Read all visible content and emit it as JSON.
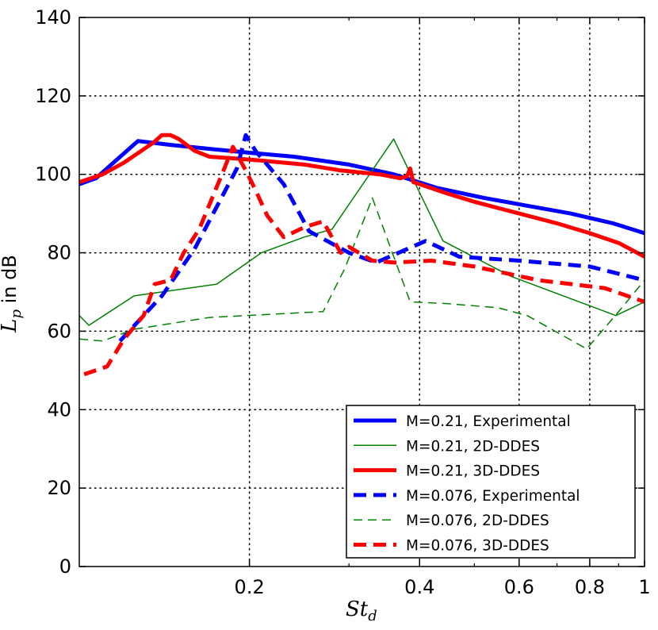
{
  "chart_data": {
    "type": "line",
    "title": "",
    "xlabel": "St_d",
    "xlabel_main": "St",
    "xlabel_sub": "d",
    "ylabel": "L_p in dB",
    "ylabel_main": "L",
    "ylabel_sub": "p",
    "ylabel_rest": " in dB",
    "xscale": "log",
    "xlim": [
      0.1,
      1.0
    ],
    "ylim": [
      0,
      140
    ],
    "xticks": [
      {
        "value": 0.2,
        "label": "0.2"
      },
      {
        "value": 0.4,
        "label": "0.4"
      },
      {
        "value": 0.6,
        "label": "0.6"
      },
      {
        "value": 0.8,
        "label": "0.8"
      },
      {
        "value": 1.0,
        "label": "1"
      }
    ],
    "yticks": [
      {
        "value": 0,
        "label": "0"
      },
      {
        "value": 20,
        "label": "20"
      },
      {
        "value": 40,
        "label": "40"
      },
      {
        "value": 60,
        "label": "60"
      },
      {
        "value": 80,
        "label": "80"
      },
      {
        "value": 100,
        "label": "100"
      },
      {
        "value": 120,
        "label": "120"
      },
      {
        "value": 140,
        "label": "140"
      }
    ],
    "grid": true,
    "legend_position": "bottom-right",
    "series": [
      {
        "name": "M=0.21, Experimental",
        "color": "#0000ff",
        "style": "solid",
        "weight": "thick",
        "x": [
          0.1,
          0.107,
          0.115,
          0.127,
          0.145,
          0.17,
          0.2,
          0.24,
          0.3,
          0.36,
          0.43,
          0.52,
          0.62,
          0.74,
          0.88,
          1.0
        ],
        "y": [
          97.5,
          99,
          103,
          108.5,
          107.5,
          106.5,
          105.5,
          104.5,
          102.5,
          100,
          96.5,
          94,
          92,
          90,
          87.5,
          85
        ]
      },
      {
        "name": "M=0.21, 2D-DDES",
        "color": "#008000",
        "style": "solid",
        "weight": "thin",
        "x": [
          0.1,
          0.104,
          0.125,
          0.175,
          0.21,
          0.25,
          0.28,
          0.36,
          0.44,
          0.58,
          0.89,
          1.0
        ],
        "y": [
          64,
          61.5,
          69,
          72,
          80,
          84,
          86,
          109,
          83,
          74,
          64,
          67.5
        ]
      },
      {
        "name": "M=0.21, 3D-DDES",
        "color": "#ff0000",
        "style": "solid",
        "weight": "thick",
        "x": [
          0.1,
          0.11,
          0.12,
          0.135,
          0.14,
          0.145,
          0.15,
          0.16,
          0.17,
          0.19,
          0.21,
          0.25,
          0.29,
          0.34,
          0.37,
          0.38,
          0.385,
          0.39,
          0.4,
          0.45,
          0.5,
          0.6,
          0.7,
          0.8,
          0.9,
          1.0
        ],
        "y": [
          98,
          100,
          103,
          108,
          110,
          110,
          109,
          106,
          104.5,
          104,
          103.5,
          102.5,
          101,
          100,
          99,
          99.5,
          101.5,
          98,
          97.5,
          95,
          93,
          90,
          87.5,
          85,
          82.5,
          79
        ]
      },
      {
        "name": "M=0.076, Experimental",
        "color": "#0000ff",
        "style": "dashed",
        "weight": "thick",
        "x": [
          0.118,
          0.14,
          0.16,
          0.19,
          0.197,
          0.205,
          0.23,
          0.255,
          0.3,
          0.335,
          0.41,
          0.47,
          0.6,
          0.8,
          1.0
        ],
        "y": [
          57.5,
          69,
          81,
          101.5,
          110,
          106,
          97.5,
          85.5,
          80,
          77.5,
          83,
          79,
          78,
          76.5,
          73
        ]
      },
      {
        "name": "M=0.076, 2D-DDES",
        "color": "#008000",
        "style": "dashed",
        "weight": "thin",
        "x": [
          0.1,
          0.11,
          0.125,
          0.17,
          0.27,
          0.295,
          0.33,
          0.385,
          0.45,
          0.55,
          0.62,
          0.79,
          0.9,
          1.0
        ],
        "y": [
          58,
          57.5,
          60.5,
          63.5,
          65,
          76,
          94,
          67.5,
          67,
          66,
          64,
          55.5,
          65,
          73
        ]
      },
      {
        "name": "M=0.076, 3D-DDES",
        "color": "#ff0000",
        "style": "dashed",
        "weight": "thick",
        "x": [
          0.102,
          0.112,
          0.12,
          0.13,
          0.136,
          0.145,
          0.153,
          0.163,
          0.18,
          0.187,
          0.197,
          0.205,
          0.215,
          0.23,
          0.25,
          0.27,
          0.29,
          0.3,
          0.33,
          0.36,
          0.42,
          0.5,
          0.65,
          0.85,
          1.0
        ],
        "y": [
          49,
          51,
          58,
          64,
          72,
          73,
          80,
          86,
          101,
          107,
          101,
          96,
          89.5,
          84,
          86.5,
          88,
          80,
          81.5,
          78,
          77.5,
          78,
          76.5,
          73,
          71,
          67.5
        ]
      }
    ]
  }
}
